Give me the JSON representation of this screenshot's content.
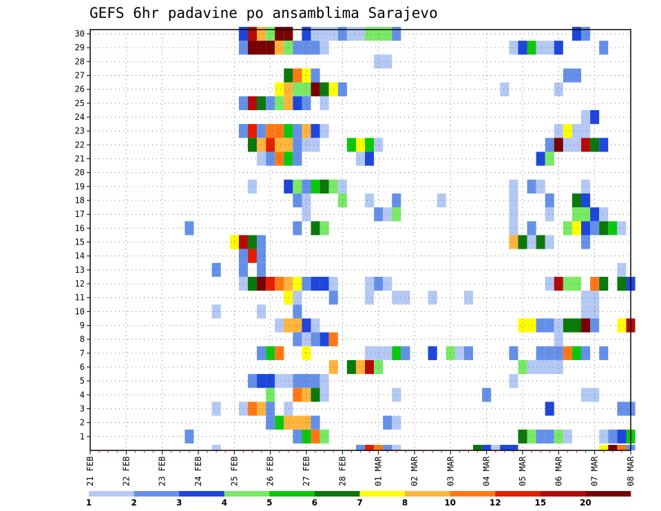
{
  "chart_data": {
    "type": "heatmap",
    "title": "GEFS 6hr padavine po ansamblima Sarajevo",
    "xlabel": "",
    "ylabel": "",
    "x_ticks": [
      "21 FEB",
      "22 FEB",
      "23 FEB",
      "24 FEB",
      "25 FEB",
      "26 FEB",
      "27 FEB",
      "28 FEB",
      "01 MAR",
      "02 MAR",
      "03 MAR",
      "04 MAR",
      "05 MAR",
      "06 MAR",
      "07 MAR",
      "08 MAR"
    ],
    "x_steps_per_day": 4,
    "x_range_steps": [
      0,
      60
    ],
    "y_ticks": [
      1,
      2,
      3,
      4,
      5,
      6,
      7,
      8,
      9,
      10,
      11,
      12,
      13,
      14,
      15,
      16,
      17,
      18,
      19,
      20,
      21,
      22,
      23,
      24,
      25,
      26,
      27,
      28,
      29,
      30
    ],
    "y_range": [
      0,
      30
    ],
    "grid": true,
    "color_scale": {
      "labels": [
        "1",
        "2",
        "3",
        "4",
        "5",
        "6",
        "7",
        "8",
        "10",
        "12",
        "15",
        "20"
      ],
      "colors": [
        "#b4c8f5",
        "#6490ea",
        "#1e46dc",
        "#78ea64",
        "#0cc80c",
        "#0a780a",
        "#ffff00",
        "#ffb43c",
        "#ff7814",
        "#e61e00",
        "#b40a0a",
        "#780000"
      ]
    },
    "note_values": "cells: [x_step, member, color_class 1-12]",
    "cells": [
      [
        17,
        30,
        3
      ],
      [
        18,
        30,
        11
      ],
      [
        19,
        30,
        8
      ],
      [
        20,
        30,
        4
      ],
      [
        21,
        30,
        12
      ],
      [
        22,
        30,
        12
      ],
      [
        24,
        30,
        3
      ],
      [
        25,
        30,
        1
      ],
      [
        26,
        30,
        1
      ],
      [
        27,
        30,
        1
      ],
      [
        28,
        30,
        2
      ],
      [
        29,
        30,
        1
      ],
      [
        30,
        30,
        1
      ],
      [
        31,
        30,
        4
      ],
      [
        32,
        30,
        4
      ],
      [
        33,
        30,
        4
      ],
      [
        34,
        30,
        2
      ],
      [
        54,
        30,
        3
      ],
      [
        55,
        30,
        2
      ],
      [
        17,
        29,
        2
      ],
      [
        18,
        29,
        12
      ],
      [
        19,
        29,
        12
      ],
      [
        20,
        29,
        12
      ],
      [
        21,
        29,
        8
      ],
      [
        22,
        29,
        4
      ],
      [
        23,
        29,
        2
      ],
      [
        24,
        29,
        2
      ],
      [
        25,
        29,
        2
      ],
      [
        26,
        29,
        1
      ],
      [
        47,
        29,
        1
      ],
      [
        48,
        29,
        3
      ],
      [
        49,
        29,
        5
      ],
      [
        50,
        29,
        1
      ],
      [
        51,
        29,
        1
      ],
      [
        52,
        29,
        3
      ],
      [
        57,
        29,
        2
      ],
      [
        32,
        28,
        1
      ],
      [
        33,
        28,
        1
      ],
      [
        22,
        27,
        6
      ],
      [
        23,
        27,
        9
      ],
      [
        24,
        27,
        7
      ],
      [
        25,
        27,
        2
      ],
      [
        53,
        27,
        2
      ],
      [
        54,
        27,
        2
      ],
      [
        21,
        26,
        7
      ],
      [
        22,
        26,
        8
      ],
      [
        23,
        26,
        4
      ],
      [
        24,
        26,
        4
      ],
      [
        25,
        26,
        12
      ],
      [
        26,
        26,
        6
      ],
      [
        27,
        26,
        7
      ],
      [
        28,
        26,
        2
      ],
      [
        46,
        26,
        1
      ],
      [
        52,
        26,
        1
      ],
      [
        17,
        25,
        2
      ],
      [
        18,
        25,
        11
      ],
      [
        19,
        25,
        6
      ],
      [
        20,
        25,
        2
      ],
      [
        21,
        25,
        4
      ],
      [
        22,
        25,
        8
      ],
      [
        23,
        25,
        3
      ],
      [
        24,
        25,
        2
      ],
      [
        26,
        25,
        1
      ],
      [
        55,
        24,
        1
      ],
      [
        56,
        24,
        3
      ],
      [
        17,
        23,
        2
      ],
      [
        18,
        23,
        10
      ],
      [
        19,
        23,
        2
      ],
      [
        20,
        23,
        9
      ],
      [
        21,
        23,
        9
      ],
      [
        22,
        23,
        5
      ],
      [
        23,
        23,
        2
      ],
      [
        24,
        23,
        8
      ],
      [
        25,
        23,
        3
      ],
      [
        26,
        23,
        1
      ],
      [
        52,
        23,
        1
      ],
      [
        53,
        23,
        7
      ],
      [
        54,
        23,
        1
      ],
      [
        55,
        23,
        1
      ],
      [
        18,
        22,
        6
      ],
      [
        19,
        22,
        8
      ],
      [
        20,
        22,
        10
      ],
      [
        21,
        22,
        8
      ],
      [
        22,
        22,
        8
      ],
      [
        23,
        22,
        2
      ],
      [
        24,
        22,
        1
      ],
      [
        25,
        22,
        1
      ],
      [
        29,
        22,
        5
      ],
      [
        30,
        22,
        7
      ],
      [
        31,
        22,
        5
      ],
      [
        32,
        22,
        1
      ],
      [
        51,
        22,
        2
      ],
      [
        52,
        22,
        12
      ],
      [
        53,
        22,
        1
      ],
      [
        54,
        22,
        1
      ],
      [
        55,
        22,
        11
      ],
      [
        56,
        22,
        6
      ],
      [
        57,
        22,
        3
      ],
      [
        19,
        21,
        1
      ],
      [
        20,
        21,
        2
      ],
      [
        21,
        21,
        9
      ],
      [
        22,
        21,
        5
      ],
      [
        23,
        21,
        2
      ],
      [
        30,
        21,
        1
      ],
      [
        31,
        21,
        3
      ],
      [
        50,
        21,
        3
      ],
      [
        51,
        21,
        4
      ],
      [
        18,
        19,
        1
      ],
      [
        22,
        19,
        3
      ],
      [
        23,
        19,
        4
      ],
      [
        24,
        19,
        2
      ],
      [
        25,
        19,
        5
      ],
      [
        26,
        19,
        6
      ],
      [
        27,
        19,
        4
      ],
      [
        28,
        19,
        1
      ],
      [
        47,
        19,
        1
      ],
      [
        49,
        19,
        2
      ],
      [
        50,
        19,
        1
      ],
      [
        55,
        19,
        1
      ],
      [
        23,
        18,
        2
      ],
      [
        24,
        18,
        1
      ],
      [
        28,
        18,
        4
      ],
      [
        31,
        18,
        1
      ],
      [
        34,
        18,
        2
      ],
      [
        39,
        18,
        1
      ],
      [
        47,
        18,
        1
      ],
      [
        51,
        18,
        2
      ],
      [
        54,
        18,
        6
      ],
      [
        55,
        18,
        3
      ],
      [
        24,
        17,
        1
      ],
      [
        32,
        17,
        2
      ],
      [
        33,
        17,
        1
      ],
      [
        34,
        17,
        4
      ],
      [
        47,
        17,
        1
      ],
      [
        51,
        17,
        1
      ],
      [
        54,
        17,
        4
      ],
      [
        55,
        17,
        4
      ],
      [
        56,
        17,
        3
      ],
      [
        57,
        17,
        1
      ],
      [
        11,
        16,
        2
      ],
      [
        23,
        16,
        2
      ],
      [
        25,
        16,
        6
      ],
      [
        26,
        16,
        4
      ],
      [
        47,
        16,
        1
      ],
      [
        49,
        16,
        2
      ],
      [
        53,
        16,
        4
      ],
      [
        54,
        16,
        7
      ],
      [
        55,
        16,
        3
      ],
      [
        56,
        16,
        2
      ],
      [
        57,
        16,
        6
      ],
      [
        58,
        16,
        5
      ],
      [
        59,
        16,
        1
      ],
      [
        16,
        15,
        7
      ],
      [
        17,
        15,
        11
      ],
      [
        18,
        15,
        6
      ],
      [
        19,
        15,
        2
      ],
      [
        47,
        15,
        8
      ],
      [
        48,
        15,
        6
      ],
      [
        49,
        15,
        1
      ],
      [
        50,
        15,
        6
      ],
      [
        51,
        15,
        1
      ],
      [
        55,
        15,
        2
      ],
      [
        17,
        14,
        2
      ],
      [
        18,
        14,
        10
      ],
      [
        19,
        14,
        2
      ],
      [
        14,
        13,
        2
      ],
      [
        17,
        13,
        2
      ],
      [
        19,
        13,
        2
      ],
      [
        59,
        13,
        1
      ],
      [
        17,
        12,
        1
      ],
      [
        18,
        12,
        6
      ],
      [
        19,
        12,
        12
      ],
      [
        20,
        12,
        10
      ],
      [
        21,
        12,
        9
      ],
      [
        22,
        12,
        8
      ],
      [
        23,
        12,
        7
      ],
      [
        24,
        12,
        2
      ],
      [
        25,
        12,
        3
      ],
      [
        26,
        12,
        3
      ],
      [
        27,
        12,
        1
      ],
      [
        31,
        12,
        1
      ],
      [
        32,
        12,
        2
      ],
      [
        33,
        12,
        1
      ],
      [
        51,
        12,
        1
      ],
      [
        52,
        12,
        11
      ],
      [
        53,
        12,
        4
      ],
      [
        54,
        12,
        4
      ],
      [
        56,
        12,
        9
      ],
      [
        57,
        12,
        6
      ],
      [
        59,
        12,
        6
      ],
      [
        60,
        12,
        3
      ],
      [
        22,
        11,
        7
      ],
      [
        23,
        11,
        1
      ],
      [
        27,
        11,
        2
      ],
      [
        31,
        11,
        1
      ],
      [
        34,
        11,
        1
      ],
      [
        35,
        11,
        1
      ],
      [
        38,
        11,
        1
      ],
      [
        42,
        11,
        1
      ],
      [
        55,
        11,
        1
      ],
      [
        56,
        11,
        1
      ],
      [
        14,
        10,
        1
      ],
      [
        19,
        10,
        1
      ],
      [
        23,
        10,
        2
      ],
      [
        55,
        10,
        1
      ],
      [
        56,
        10,
        1
      ],
      [
        21,
        9,
        1
      ],
      [
        22,
        9,
        8
      ],
      [
        23,
        9,
        8
      ],
      [
        24,
        9,
        3
      ],
      [
        25,
        9,
        1
      ],
      [
        48,
        9,
        7
      ],
      [
        49,
        9,
        7
      ],
      [
        50,
        9,
        2
      ],
      [
        51,
        9,
        2
      ],
      [
        52,
        9,
        1
      ],
      [
        53,
        9,
        6
      ],
      [
        54,
        9,
        6
      ],
      [
        55,
        9,
        12
      ],
      [
        56,
        9,
        2
      ],
      [
        59,
        9,
        7
      ],
      [
        60,
        9,
        11
      ],
      [
        23,
        8,
        2
      ],
      [
        24,
        8,
        1
      ],
      [
        25,
        8,
        2
      ],
      [
        26,
        8,
        3
      ],
      [
        27,
        8,
        9
      ],
      [
        52,
        8,
        1
      ],
      [
        19,
        7,
        2
      ],
      [
        20,
        7,
        5
      ],
      [
        21,
        7,
        9
      ],
      [
        24,
        7,
        7
      ],
      [
        31,
        7,
        1
      ],
      [
        32,
        7,
        1
      ],
      [
        33,
        7,
        1
      ],
      [
        34,
        7,
        5
      ],
      [
        35,
        7,
        2
      ],
      [
        38,
        7,
        3
      ],
      [
        40,
        7,
        4
      ],
      [
        41,
        7,
        1
      ],
      [
        42,
        7,
        2
      ],
      [
        47,
        7,
        2
      ],
      [
        50,
        7,
        2
      ],
      [
        51,
        7,
        2
      ],
      [
        52,
        7,
        2
      ],
      [
        53,
        7,
        9
      ],
      [
        54,
        7,
        5
      ],
      [
        55,
        7,
        2
      ],
      [
        57,
        7,
        2
      ],
      [
        27,
        6,
        8
      ],
      [
        29,
        6,
        6
      ],
      [
        30,
        6,
        8
      ],
      [
        31,
        6,
        11
      ],
      [
        32,
        6,
        4
      ],
      [
        48,
        6,
        4
      ],
      [
        49,
        6,
        1
      ],
      [
        50,
        6,
        1
      ],
      [
        51,
        6,
        1
      ],
      [
        52,
        6,
        1
      ],
      [
        18,
        5,
        2
      ],
      [
        19,
        5,
        3
      ],
      [
        20,
        5,
        3
      ],
      [
        21,
        5,
        1
      ],
      [
        22,
        5,
        1
      ],
      [
        23,
        5,
        2
      ],
      [
        24,
        5,
        2
      ],
      [
        25,
        5,
        2
      ],
      [
        26,
        5,
        1
      ],
      [
        47,
        5,
        1
      ],
      [
        20,
        4,
        4
      ],
      [
        23,
        4,
        9
      ],
      [
        24,
        4,
        8
      ],
      [
        25,
        4,
        6
      ],
      [
        26,
        4,
        1
      ],
      [
        34,
        4,
        1
      ],
      [
        44,
        4,
        2
      ],
      [
        55,
        4,
        1
      ],
      [
        56,
        4,
        1
      ],
      [
        14,
        3,
        1
      ],
      [
        17,
        3,
        1
      ],
      [
        18,
        3,
        9
      ],
      [
        19,
        3,
        8
      ],
      [
        20,
        3,
        2
      ],
      [
        22,
        3,
        1
      ],
      [
        51,
        3,
        3
      ],
      [
        59,
        3,
        2
      ],
      [
        60,
        3,
        2
      ],
      [
        20,
        2,
        2
      ],
      [
        21,
        2,
        5
      ],
      [
        22,
        2,
        8
      ],
      [
        23,
        2,
        8
      ],
      [
        24,
        2,
        8
      ],
      [
        25,
        2,
        2
      ],
      [
        33,
        2,
        2
      ],
      [
        34,
        2,
        1
      ],
      [
        11,
        1,
        2
      ],
      [
        23,
        1,
        2
      ],
      [
        24,
        1,
        5
      ],
      [
        25,
        1,
        9
      ],
      [
        26,
        1,
        4
      ],
      [
        48,
        1,
        6
      ],
      [
        49,
        1,
        4
      ],
      [
        50,
        1,
        2
      ],
      [
        51,
        1,
        2
      ],
      [
        52,
        1,
        4
      ],
      [
        53,
        1,
        1
      ],
      [
        57,
        1,
        1
      ],
      [
        58,
        1,
        2
      ],
      [
        59,
        1,
        3
      ],
      [
        60,
        1,
        5
      ],
      [
        14,
        0,
        1
      ],
      [
        30,
        0,
        2
      ],
      [
        31,
        0,
        10
      ],
      [
        32,
        0,
        9
      ],
      [
        33,
        0,
        2
      ],
      [
        34,
        0,
        1
      ],
      [
        43,
        0,
        6
      ],
      [
        44,
        0,
        3
      ],
      [
        45,
        0,
        1
      ],
      [
        46,
        0,
        3
      ],
      [
        47,
        0,
        3
      ],
      [
        57,
        0,
        7
      ],
      [
        58,
        0,
        12
      ],
      [
        59,
        0,
        9
      ],
      [
        60,
        0,
        2
      ]
    ]
  }
}
